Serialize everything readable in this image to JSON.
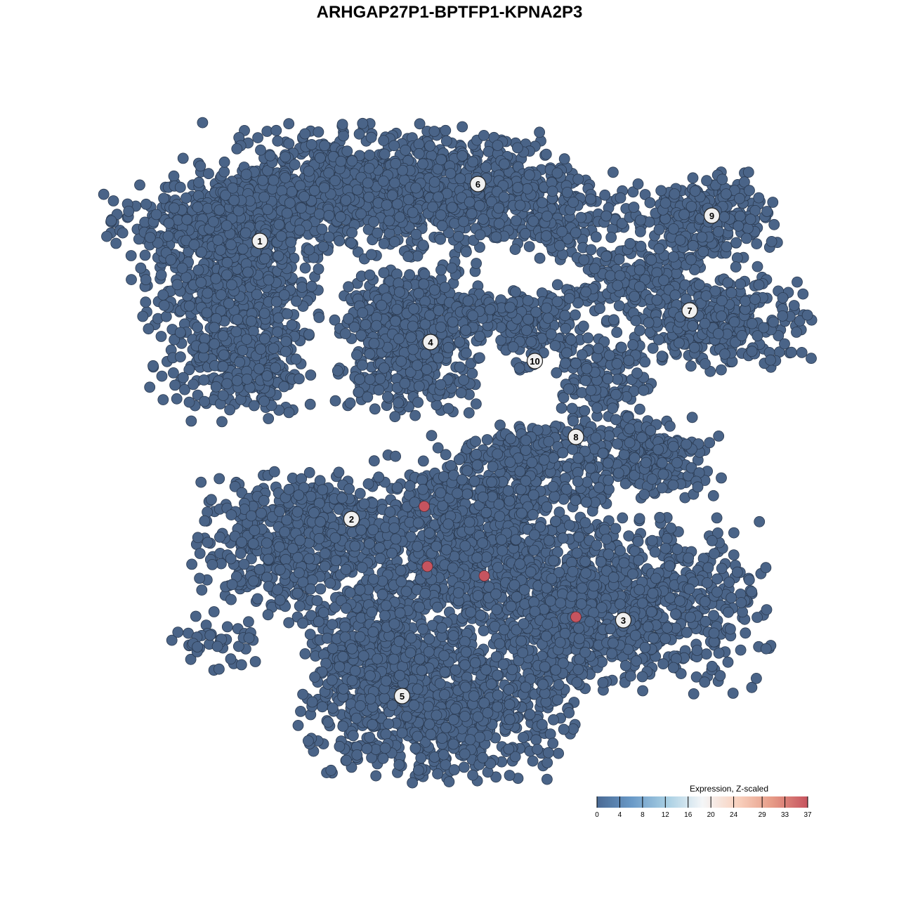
{
  "chart_data": {
    "type": "scatter",
    "title": "ARHGAP27P1-BPTFP1-KPNA2P3",
    "xlabel": "",
    "ylabel": "",
    "grid": false,
    "point_colors": {
      "low": "#4a6488",
      "high": "#c6545f"
    },
    "clusters": [
      {
        "label": "1",
        "label_pos": [
          -6.0,
          6.6
        ],
        "components": [
          [
            -6.9,
            5.3,
            1.3,
            1.8,
            700
          ],
          [
            -7.6,
            6.9,
            1.6,
            0.8,
            300
          ],
          [
            -6.2,
            2.4,
            0.9,
            0.7,
            150
          ]
        ]
      },
      {
        "label": "6",
        "label_pos": [
          0.9,
          8.4
        ],
        "components": [
          [
            -3.6,
            8.2,
            2.0,
            1.0,
            600
          ],
          [
            0.2,
            8.2,
            2.0,
            0.9,
            500
          ],
          [
            3.3,
            7.6,
            1.3,
            0.8,
            200
          ]
        ]
      },
      {
        "label": "4",
        "label_pos": [
          -0.6,
          3.4
        ],
        "components": [
          [
            -1.3,
            3.6,
            1.1,
            1.2,
            600
          ]
        ]
      },
      {
        "label": "10",
        "label_pos": [
          2.7,
          2.8
        ],
        "components": [
          [
            2.7,
            3.8,
            0.9,
            0.7,
            150
          ],
          [
            1.3,
            4.2,
            0.9,
            0.4,
            80
          ]
        ]
      },
      {
        "label": "7",
        "label_pos": [
          7.6,
          4.4
        ],
        "components": [
          [
            5.8,
            5.3,
            1.1,
            0.6,
            200
          ],
          [
            8.7,
            4.0,
            1.3,
            0.7,
            300
          ]
        ]
      },
      {
        "label": "9",
        "label_pos": [
          8.3,
          7.4
        ],
        "components": [
          [
            8.0,
            7.3,
            1.1,
            0.7,
            250
          ]
        ]
      },
      {
        "label": "8",
        "label_pos": [
          4.0,
          0.4
        ],
        "components": [
          [
            4.9,
            2.2,
            0.7,
            0.9,
            150
          ],
          [
            6.2,
            -0.2,
            1.1,
            0.7,
            250
          ],
          [
            2.7,
            0.0,
            1.1,
            0.4,
            100
          ]
        ]
      },
      {
        "label": "2",
        "label_pos": [
          -3.1,
          -2.2
        ],
        "components": [
          [
            -5.3,
            -3.1,
            1.3,
            1.1,
            400
          ],
          [
            -3.6,
            -2.0,
            0.9,
            0.6,
            100
          ],
          [
            -7.3,
            -6.2,
            0.7,
            0.4,
            40
          ],
          [
            0.4,
            -3.6,
            2.2,
            1.6,
            1000
          ],
          [
            1.8,
            -1.3,
            1.6,
            0.9,
            300
          ]
        ]
      },
      {
        "label": "3",
        "label_pos": [
          5.5,
          -5.4
        ],
        "components": [
          [
            5.8,
            -4.9,
            2.0,
            1.3,
            700
          ],
          [
            3.6,
            -5.8,
            0.9,
            1.1,
            200
          ]
        ]
      },
      {
        "label": "5",
        "label_pos": [
          -1.5,
          -7.8
        ],
        "components": [
          [
            -0.4,
            -8.2,
            2.0,
            1.1,
            800
          ],
          [
            -2.4,
            -6.4,
            1.1,
            1.1,
            300
          ]
        ]
      }
    ],
    "high_expression_points": [
      [
        -0.8,
        -1.8,
        37
      ],
      [
        -0.7,
        -3.7,
        37
      ],
      [
        1.1,
        -4.0,
        37
      ],
      [
        4.0,
        -5.3,
        37
      ]
    ],
    "legend": {
      "title": "Expression, Z-scaled",
      "placement": "bottom-right",
      "range": [
        0,
        37
      ],
      "ticks": [
        0,
        4,
        8,
        12,
        16,
        20,
        24,
        29,
        33,
        37
      ],
      "colors": [
        "#4a6a94",
        "#6a9ac8",
        "#a8cfe3",
        "#f4f6f8",
        "#f9d2bf",
        "#e69a86",
        "#c6545f"
      ]
    }
  }
}
